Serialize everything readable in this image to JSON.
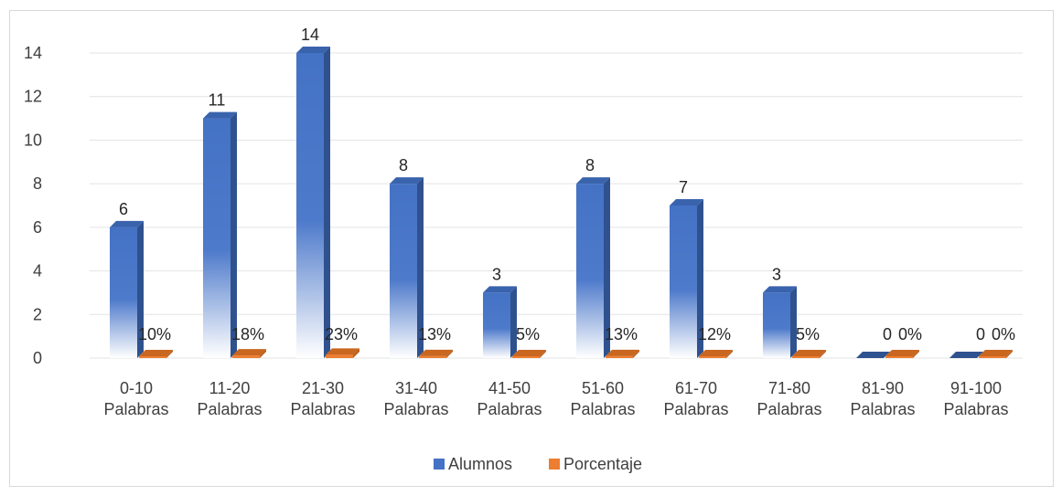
{
  "chart_data": {
    "type": "bar",
    "title": "",
    "xlabel": "",
    "ylabel": "",
    "ylim": [
      0,
      14
    ],
    "yticks": [
      0,
      2,
      4,
      6,
      8,
      10,
      12,
      14
    ],
    "grid": true,
    "legend_position": "bottom",
    "categories": [
      [
        "0-10",
        "Palabras"
      ],
      [
        "11-20",
        "Palabras"
      ],
      [
        "21-30",
        "Palabras"
      ],
      [
        "31-40",
        "Palabras"
      ],
      [
        "41-50",
        "Palabras"
      ],
      [
        "51-60",
        "Palabras"
      ],
      [
        "61-70",
        "Palabras"
      ],
      [
        "71-80",
        "Palabras"
      ],
      [
        "81-90",
        "Palabras"
      ],
      [
        "91-100",
        "Palabras"
      ]
    ],
    "series": [
      {
        "name": "Alumnos",
        "color": "#4472C4",
        "values": [
          6,
          11,
          14,
          8,
          3,
          8,
          7,
          3,
          0,
          0
        ],
        "labels": [
          "6",
          "11",
          "14",
          "8",
          "3",
          "8",
          "7",
          "3",
          "0",
          "0"
        ]
      },
      {
        "name": "Porcentaje",
        "color": "#ED7D31",
        "values": [
          0.1,
          0.18,
          0.23,
          0.13,
          0.05,
          0.13,
          0.12,
          0.05,
          0,
          0
        ],
        "labels": [
          "10%",
          "18%",
          "23%",
          "13%",
          "5%",
          "13%",
          "12%",
          "5%",
          "0%",
          "0%"
        ]
      }
    ]
  }
}
